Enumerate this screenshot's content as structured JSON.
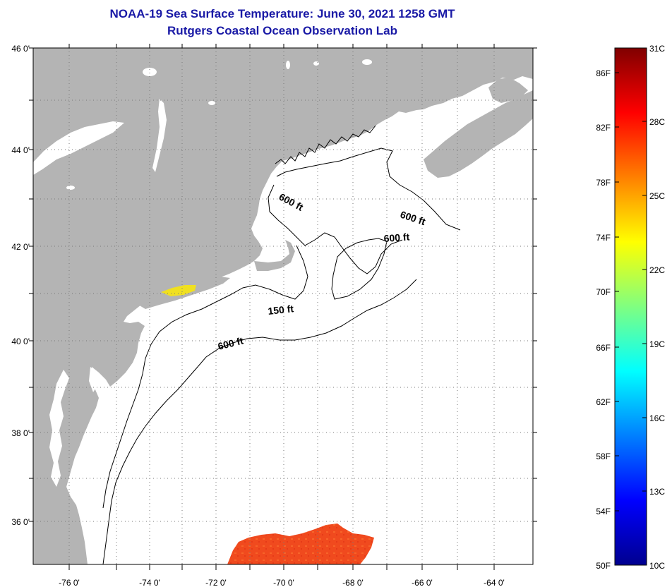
{
  "title": "NOAA-19 Sea Surface Temperature:  June 30, 2021 1258 GMT",
  "subtitle": "Rutgers Coastal Ocean Observation Lab",
  "map": {
    "lat_labels": [
      "46 0'",
      "44 0'",
      "42 0'",
      "40 0'",
      "38 0'",
      "36 0'"
    ],
    "lon_labels": [
      "-76 0'",
      "-74 0'",
      "-72 0'",
      "-70 0'",
      "-68 0'",
      "-66 0'",
      "-64 0'"
    ],
    "lat_range": [
      35,
      46
    ],
    "lon_range": [
      -77,
      -63
    ],
    "land_color": "#b4b4b4",
    "water_color": "#ffffff",
    "contour_labels": [
      "600 ft",
      "600 ft",
      "600 ft",
      "150 ft",
      "600 ft"
    ]
  },
  "colorbar": {
    "fahrenheit_labels": [
      "86F",
      "82F",
      "78F",
      "74F",
      "70F",
      "66F",
      "62F",
      "58F",
      "54F",
      "50F"
    ],
    "celsius_labels": [
      "31C",
      "28C",
      "25C",
      "22C",
      "19C",
      "16C",
      "13C",
      "10C"
    ],
    "range_c": [
      10,
      31
    ],
    "colormap": "jet"
  }
}
